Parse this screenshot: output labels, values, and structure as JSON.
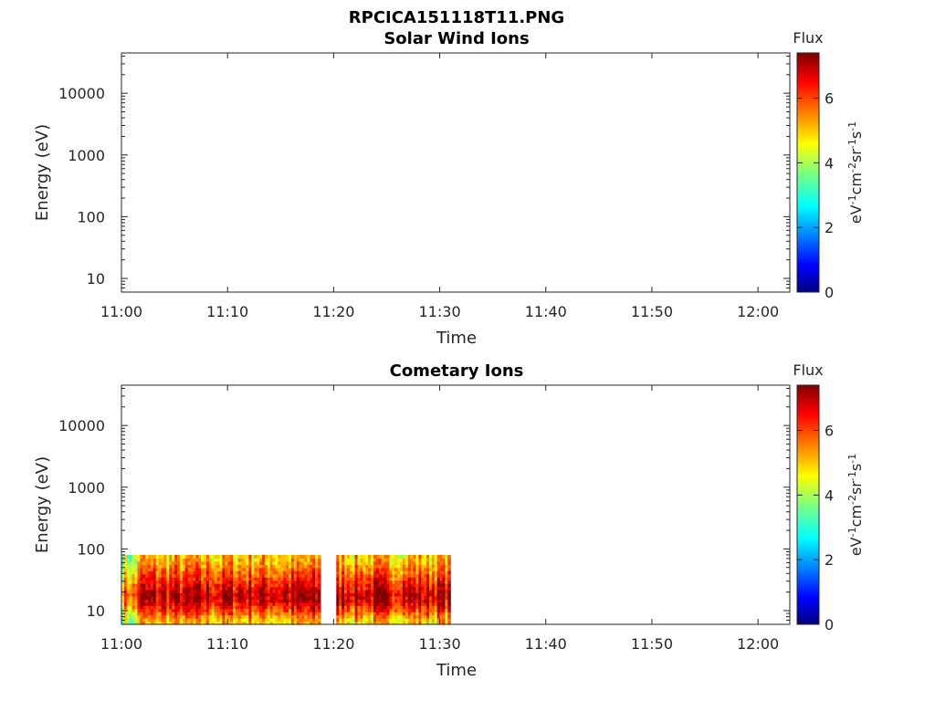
{
  "figure_title": "RPCICA151118T11.PNG",
  "colors": {
    "axis": "#262626",
    "colormap": [
      "#00007f",
      "#0000ff",
      "#007fff",
      "#00ffff",
      "#7fff7f",
      "#ffff00",
      "#ff7f00",
      "#ff0000",
      "#7f0000"
    ]
  },
  "chart_data": [
    {
      "type": "heatmap",
      "title": "Solar Wind Ions",
      "xlabel": "Time",
      "ylabel": "Energy (eV)",
      "x_ticks": [
        "11:00",
        "11:10",
        "11:20",
        "11:30",
        "11:40",
        "11:50",
        "12:00"
      ],
      "xlim_minutes": [
        0,
        63
      ],
      "y_scale": "log",
      "y_ticks": [
        "10",
        "100",
        "1000",
        "10000"
      ],
      "ylim": [
        6,
        45000
      ],
      "colorbar": {
        "title": "Flux",
        "label": "eV-1cm-2sr-1s-1",
        "ticks": [
          "0",
          "2",
          "4",
          "6"
        ],
        "range": [
          0,
          7.4
        ]
      },
      "data_present": false
    },
    {
      "type": "heatmap",
      "title": "Cometary Ions",
      "xlabel": "Time",
      "ylabel": "Energy (eV)",
      "x_ticks": [
        "11:00",
        "11:10",
        "11:20",
        "11:30",
        "11:40",
        "11:50",
        "12:00"
      ],
      "xlim_minutes": [
        0,
        63
      ],
      "y_scale": "log",
      "y_ticks": [
        "10",
        "100",
        "1000",
        "10000"
      ],
      "ylim": [
        6,
        45000
      ],
      "colorbar": {
        "title": "Flux",
        "label": "eV-1cm-2sr-1s-1",
        "ticks": [
          "0",
          "2",
          "4",
          "6"
        ],
        "range": [
          0,
          7.4
        ]
      },
      "data_present": true,
      "data_time_range_minutes": [
        0,
        31
      ],
      "data_energy_range": [
        6,
        80
      ],
      "peak_flux_energy": 18,
      "gap_minutes": [
        18.8,
        20.2
      ],
      "approx_flux_by_energy": {
        "energy": [
          7,
          10,
          14,
          18,
          25,
          35,
          50,
          70
        ],
        "flux": [
          5.0,
          6.0,
          6.8,
          7.0,
          6.5,
          6.0,
          5.5,
          5.0
        ]
      }
    }
  ]
}
